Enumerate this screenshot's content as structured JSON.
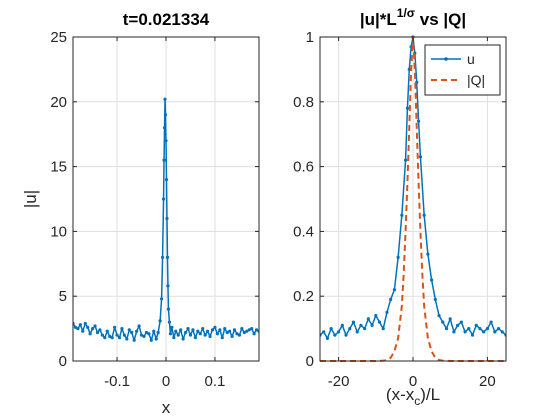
{
  "chart_data": [
    {
      "type": "line",
      "title": "t=0.021334",
      "xlabel": "x",
      "ylabel": "|u|",
      "xlim": [
        -0.19,
        0.19
      ],
      "ylim": [
        0,
        25
      ],
      "xticks": [
        -0.1,
        0,
        0.1
      ],
      "xtick_labels": [
        "-0.1",
        "0",
        "0.1"
      ],
      "yticks": [
        0,
        5,
        10,
        15,
        20,
        25
      ],
      "ytick_labels": [
        "0",
        "5",
        "10",
        "15",
        "20",
        "25"
      ],
      "grid": true,
      "series": [
        {
          "color": "#0072BD",
          "marker": "dot",
          "x": [
            -0.19,
            -0.185,
            -0.18,
            -0.175,
            -0.17,
            -0.165,
            -0.16,
            -0.155,
            -0.15,
            -0.145,
            -0.14,
            -0.135,
            -0.13,
            -0.125,
            -0.12,
            -0.115,
            -0.11,
            -0.105,
            -0.1,
            -0.095,
            -0.09,
            -0.085,
            -0.08,
            -0.075,
            -0.07,
            -0.065,
            -0.06,
            -0.055,
            -0.05,
            -0.045,
            -0.04,
            -0.035,
            -0.03,
            -0.025,
            -0.02,
            -0.016,
            -0.012,
            -0.009,
            -0.007,
            -0.005,
            -0.004,
            -0.003,
            -0.002,
            -0.001,
            0,
            0.001,
            0.002,
            0.003,
            0.004,
            0.005,
            0.007,
            0.009,
            0.012,
            0.016,
            0.02,
            0.025,
            0.03,
            0.035,
            0.04,
            0.045,
            0.05,
            0.055,
            0.06,
            0.065,
            0.07,
            0.075,
            0.08,
            0.085,
            0.09,
            0.095,
            0.1,
            0.105,
            0.11,
            0.115,
            0.12,
            0.125,
            0.13,
            0.135,
            0.14,
            0.145,
            0.15,
            0.155,
            0.16,
            0.165,
            0.17,
            0.175,
            0.18,
            0.185,
            0.19
          ],
          "y": [
            2.9,
            2.6,
            2.5,
            2.8,
            2.3,
            2.9,
            2.6,
            2.1,
            2.5,
            2.7,
            2.2,
            2.4,
            2.0,
            1.8,
            2.3,
            1.9,
            1.8,
            2.6,
            2.0,
            1.8,
            2.5,
            2.0,
            1.7,
            2.4,
            2.2,
            1.6,
            2.3,
            2.7,
            2.0,
            1.9,
            2.2,
            2.1,
            1.6,
            2.3,
            1.7,
            2.2,
            3.1,
            4.8,
            8.0,
            12.5,
            15.5,
            18.0,
            20.2,
            19.0,
            17.0,
            14.0,
            11.0,
            8.0,
            5.8,
            4.0,
            3.0,
            2.1,
            2.6,
            1.8,
            2.3,
            2.0,
            2.4,
            1.7,
            2.2,
            2.5,
            2.0,
            2.4,
            1.8,
            2.3,
            2.1,
            2.5,
            2.0,
            2.3,
            1.9,
            2.4,
            2.6,
            2.1,
            2.4,
            1.8,
            2.5,
            2.2,
            2.3,
            1.9,
            2.4,
            2.1,
            2.0,
            2.5,
            2.2,
            2.3,
            2.4,
            2.5,
            2.1,
            2.4,
            2.3
          ]
        }
      ]
    },
    {
      "type": "line",
      "title": "|u|*L^{1/σ} vs |Q|",
      "title_parts": [
        "|u|*L",
        "1/σ",
        " vs |Q|"
      ],
      "xlabel_parts": [
        "(x-x",
        "c",
        ")/L"
      ],
      "ylabel": "",
      "xlim": [
        -25,
        25
      ],
      "ylim": [
        0,
        1
      ],
      "xticks": [
        -20,
        0,
        20
      ],
      "xtick_labels": [
        "-20",
        "0",
        "20"
      ],
      "yticks": [
        0,
        0.2,
        0.4,
        0.6,
        0.8,
        1
      ],
      "ytick_labels": [
        "0",
        "0.2",
        "0.4",
        "0.6",
        "0.8",
        "1"
      ],
      "grid": true,
      "legend_location": "top-right",
      "series": [
        {
          "name": "u",
          "color": "#0072BD",
          "style": "solid",
          "marker": "dot",
          "x": [
            -25,
            -24,
            -23,
            -22,
            -21,
            -20,
            -19,
            -18,
            -17,
            -16,
            -15,
            -14,
            -13,
            -12,
            -11,
            -10,
            -9,
            -8,
            -7,
            -6,
            -5,
            -4,
            -3,
            -2,
            -1.5,
            -1,
            -0.5,
            0,
            0.5,
            1,
            1.5,
            2,
            3,
            4,
            5,
            6,
            7,
            8,
            9,
            10,
            11,
            12,
            13,
            14,
            15,
            16,
            17,
            18,
            19,
            20,
            21,
            22,
            23,
            24,
            25
          ],
          "y": [
            0.08,
            0.09,
            0.07,
            0.1,
            0.08,
            0.09,
            0.11,
            0.08,
            0.1,
            0.12,
            0.09,
            0.11,
            0.1,
            0.13,
            0.11,
            0.14,
            0.12,
            0.1,
            0.15,
            0.19,
            0.22,
            0.32,
            0.45,
            0.62,
            0.78,
            0.9,
            0.97,
            1.0,
            0.95,
            0.86,
            0.74,
            0.63,
            0.45,
            0.33,
            0.25,
            0.19,
            0.14,
            0.12,
            0.1,
            0.13,
            0.09,
            0.11,
            0.12,
            0.09,
            0.1,
            0.08,
            0.11,
            0.1,
            0.09,
            0.1,
            0.12,
            0.09,
            0.1,
            0.09,
            0.08
          ]
        },
        {
          "name": "|Q|",
          "color": "#D95319",
          "style": "dashed",
          "marker": "none",
          "x": [
            -25,
            -20,
            -15,
            -10,
            -8,
            -7,
            -6,
            -5,
            -4,
            -3,
            -2.5,
            -2,
            -1.5,
            -1,
            -0.5,
            0,
            0.5,
            1,
            1.5,
            2,
            2.5,
            3,
            4,
            5,
            6,
            7,
            8,
            10,
            15,
            20,
            25
          ],
          "y": [
            0,
            0,
            0,
            0,
            0.001,
            0.003,
            0.01,
            0.03,
            0.07,
            0.17,
            0.27,
            0.4,
            0.55,
            0.72,
            0.9,
            1.0,
            0.9,
            0.72,
            0.55,
            0.4,
            0.27,
            0.17,
            0.07,
            0.03,
            0.01,
            0.003,
            0.001,
            0,
            0,
            0,
            0
          ]
        }
      ]
    }
  ]
}
